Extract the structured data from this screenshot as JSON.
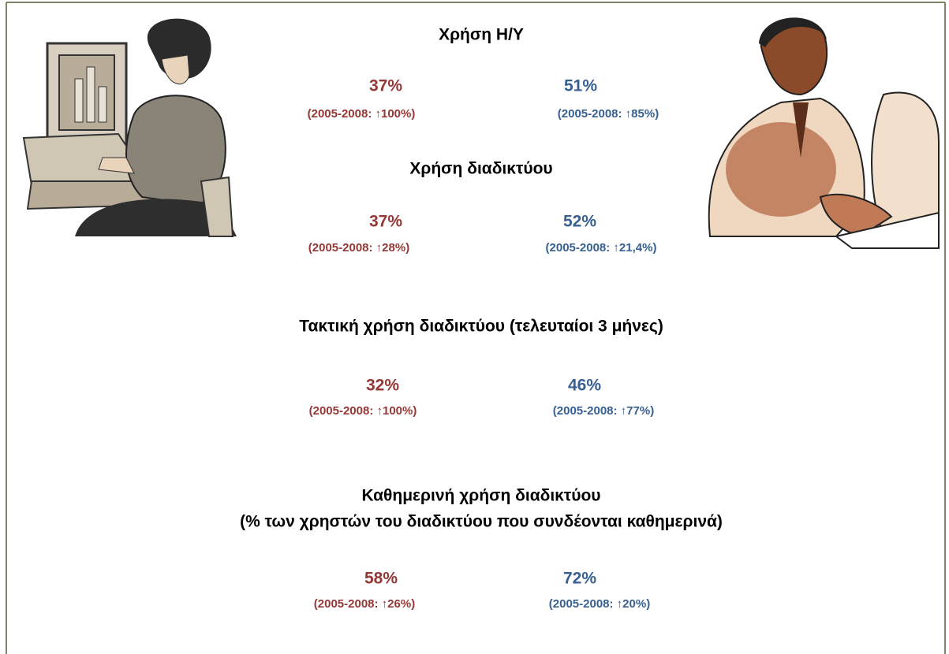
{
  "sections": [
    {
      "title": [
        "Χρήση Η/Υ"
      ],
      "women": {
        "value": "37%",
        "change": "(2005-2008: ↑100%)"
      },
      "men": {
        "value": "51%",
        "change": "(2005-2008: ↑85%)"
      }
    },
    {
      "title": [
        "Χρήση διαδικτύου"
      ],
      "women": {
        "value": "37%",
        "change": "(2005-2008: ↑28%)"
      },
      "men": {
        "value": "52%",
        "change": "(2005-2008: ↑21,4%)"
      }
    },
    {
      "title": [
        "Τακτική χρήση διαδικτύου (τελευταίοι 3 μήνες)"
      ],
      "women": {
        "value": "32%",
        "change": "(2005-2008: ↑100%)"
      },
      "men": {
        "value": "46%",
        "change": "(2005-2008: ↑77%)"
      }
    },
    {
      "title": [
        "Καθημερινή χρήση διαδικτύου",
        "(% των χρηστών του διαδικτύου που συνδέονται καθημερινά)"
      ],
      "women": {
        "value": "58%",
        "change": "(2005-2008: ↑26%)"
      },
      "men": {
        "value": "72%",
        "change": "(2005-2008: ↑20%)"
      }
    }
  ]
}
